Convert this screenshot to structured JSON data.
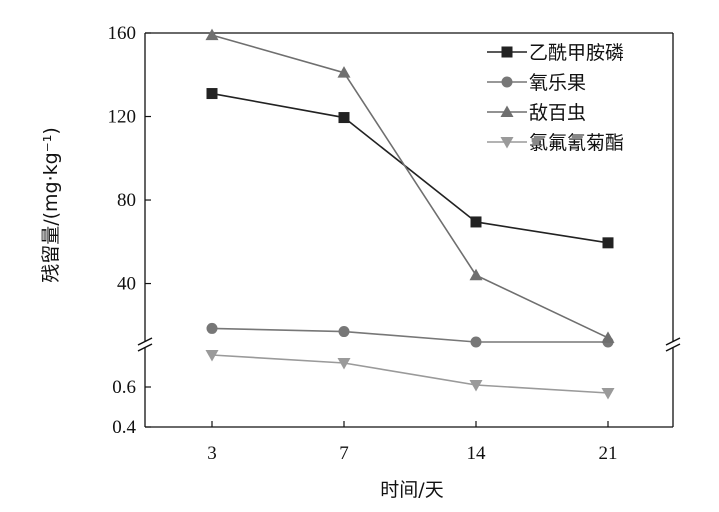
{
  "chart_data": {
    "type": "line",
    "xlabel": "时间/天",
    "ylabel": "残留量/(mg·kg⁻¹)",
    "categories": [
      "3",
      "7",
      "14",
      "21"
    ],
    "y_scale": "broken",
    "y_lower_segment": {
      "range": [
        0.4,
        0.8
      ],
      "ticks": [
        "0.4",
        "0.6"
      ]
    },
    "y_upper_segment": {
      "range": [
        12,
        160
      ],
      "ticks": [
        "40",
        "80",
        "120",
        "160"
      ]
    },
    "legend_placement": "top-right",
    "grid": false,
    "series": [
      {
        "name": "乙酰甲胺磷",
        "marker": "square",
        "color": "#222222",
        "values": [
          131,
          119.5,
          69.5,
          59.5
        ]
      },
      {
        "name": "氧乐果",
        "marker": "circle",
        "color": "#777777",
        "values": [
          18.5,
          17,
          12,
          12
        ]
      },
      {
        "name": "敌百虫",
        "marker": "triangle-up",
        "color": "#6f6f6f",
        "values": [
          159,
          141,
          44,
          14
        ]
      },
      {
        "name": "氯氟氰菊酯",
        "marker": "triangle-down",
        "color": "#9a9a9a",
        "values": [
          0.76,
          0.72,
          0.61,
          0.57
        ]
      }
    ]
  }
}
